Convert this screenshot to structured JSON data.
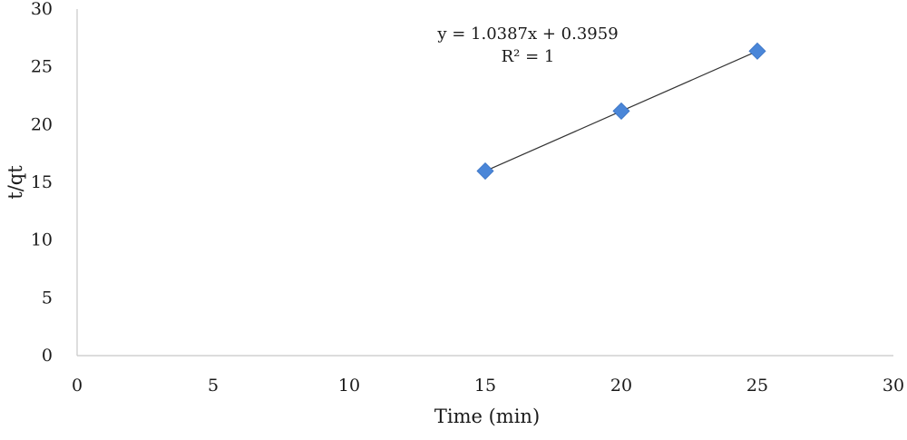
{
  "chart_data": {
    "type": "scatter",
    "xlabel": "Time (min)",
    "ylabel": "t/qt",
    "xlim": [
      0,
      30
    ],
    "ylim": [
      0,
      30
    ],
    "xticks": [
      0,
      5,
      10,
      15,
      20,
      25,
      30
    ],
    "yticks": [
      0,
      5,
      10,
      15,
      20,
      25,
      30
    ],
    "grid": false,
    "series": [
      {
        "marker": "diamond",
        "color": "#4a86d8",
        "points": [
          {
            "x": 15,
            "y": 15.98
          },
          {
            "x": 20,
            "y": 21.17
          },
          {
            "x": 25,
            "y": 26.36
          }
        ]
      }
    ],
    "trendline": {
      "type": "linear",
      "slope": 1.0387,
      "intercept": 0.3959,
      "x_range": [
        15,
        25
      ],
      "color": "#333333",
      "equation_label": "y = 1.0387x + 0.3959",
      "r2_label": "R² = 1"
    }
  }
}
